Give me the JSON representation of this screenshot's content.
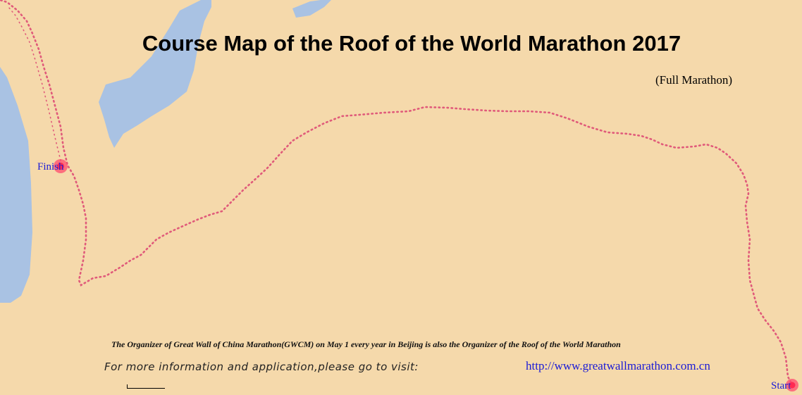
{
  "title": "Course Map of the Roof of the World Marathon 2017",
  "subtitle": "(Full Marathon)",
  "markers": {
    "finish": "Finish",
    "start": "Start"
  },
  "footer": {
    "organizer": "The Organizer of Great Wall of China Marathon(GWCM) on May 1 every year in Beijing is also the Organizer of the Roof of the World Marathon",
    "info": "For more information and application,please go to visit:",
    "url": "http://www.greatwallmarathon.com.cn"
  },
  "colors": {
    "land": "#f5d9ab",
    "water": "#a9c2e3",
    "route": "#e05a7a",
    "label": "#1a1ad6"
  },
  "map_icons": [
    "route-line",
    "start-marker",
    "finish-marker",
    "scale-bar"
  ]
}
